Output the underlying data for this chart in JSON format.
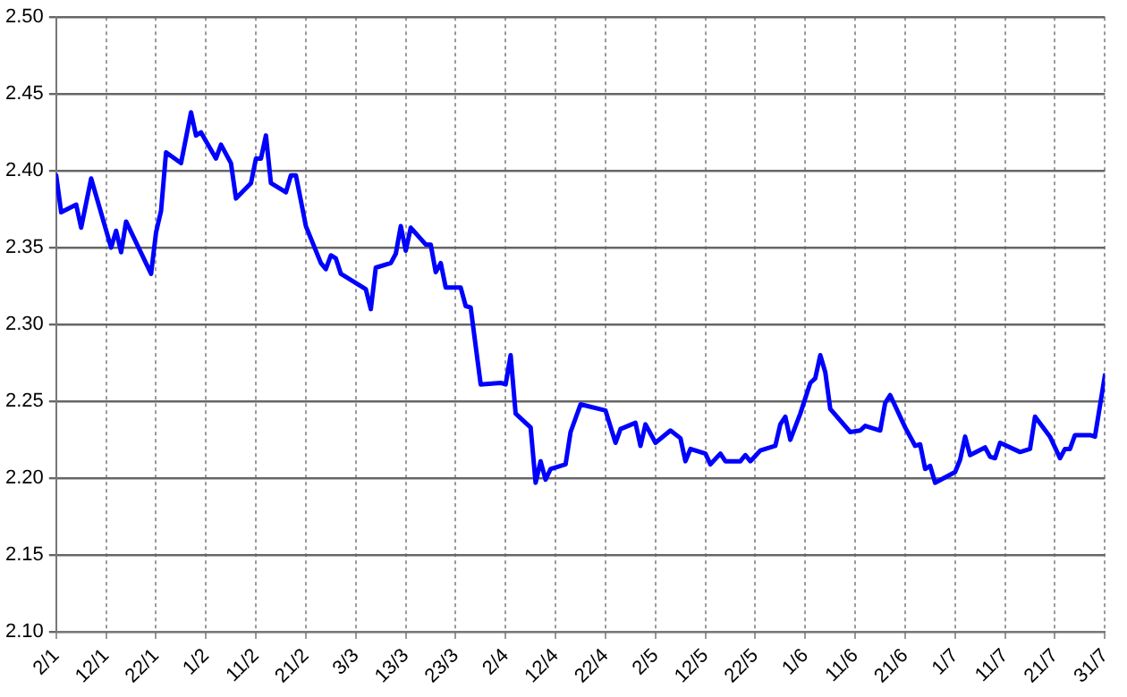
{
  "chart_data": {
    "type": "line",
    "x": [
      "--01-02",
      "--01-03",
      "--01-06",
      "--01-07",
      "--01-09",
      "--01-13",
      "--01-14",
      "--01-15",
      "--01-16",
      "--01-21",
      "--01-22",
      "--01-23",
      "--01-24",
      "--01-27",
      "--01-29",
      "--01-30",
      "--01-31",
      "--02-03",
      "--02-04",
      "--02-06",
      "--02-07",
      "--02-10",
      "--02-11",
      "--02-12",
      "--02-13",
      "--02-14",
      "--02-17",
      "--02-18",
      "--02-19",
      "--02-21",
      "--02-24",
      "--02-25",
      "--02-26",
      "--02-27",
      "--02-28",
      "--03-05",
      "--03-06",
      "--03-07",
      "--03-10",
      "--03-11",
      "--03-12",
      "--03-13",
      "--03-14",
      "--03-17",
      "--03-18",
      "--03-19",
      "--03-20",
      "--03-21",
      "--03-24",
      "--03-25",
      "--03-26",
      "--03-28",
      "--04-01",
      "--04-02",
      "--04-03",
      "--04-04",
      "--04-07",
      "--04-08",
      "--04-09",
      "--04-10",
      "--04-11",
      "--04-14",
      "--04-15",
      "--04-17",
      "--04-22",
      "--04-24",
      "--04-25",
      "--04-28",
      "--04-29",
      "--04-30",
      "--05-02",
      "--05-05",
      "--05-07",
      "--05-08",
      "--05-09",
      "--05-12",
      "--05-13",
      "--05-15",
      "--05-16",
      "--05-19",
      "--05-20",
      "--05-21",
      "--05-23",
      "--05-26",
      "--05-27",
      "--05-28",
      "--05-29",
      "--05-31",
      "--06-02",
      "--06-03",
      "--06-04",
      "--06-05",
      "--06-06",
      "--06-10",
      "--06-12",
      "--06-13",
      "--06-16",
      "--06-17",
      "--06-18",
      "--06-21",
      "--06-23",
      "--06-24",
      "--06-25",
      "--06-26",
      "--06-27",
      "--07-01",
      "--07-02",
      "--07-03",
      "--07-04",
      "--07-07",
      "--07-08",
      "--07-09",
      "--07-10",
      "--07-14",
      "--07-16",
      "--07-17",
      "--07-20",
      "--07-22",
      "--07-23",
      "--07-24",
      "--07-25",
      "--07-28",
      "--07-29",
      "--07-31"
    ],
    "series": [
      {
        "color": "#0000ff",
        "values": [
          2.397,
          2.373,
          2.378,
          2.363,
          2.395,
          2.35,
          2.361,
          2.347,
          2.367,
          2.333,
          2.36,
          2.374,
          2.412,
          2.405,
          2.438,
          2.423,
          2.425,
          2.408,
          2.417,
          2.405,
          2.382,
          2.392,
          2.408,
          2.408,
          2.423,
          2.392,
          2.386,
          2.397,
          2.397,
          2.364,
          2.34,
          2.336,
          2.345,
          2.343,
          2.333,
          2.323,
          2.31,
          2.337,
          2.34,
          2.346,
          2.364,
          2.348,
          2.363,
          2.352,
          2.352,
          2.334,
          2.34,
          2.324,
          2.324,
          2.312,
          2.311,
          2.261,
          2.262,
          2.261,
          2.28,
          2.242,
          2.233,
          2.197,
          2.211,
          2.199,
          2.206,
          2.209,
          2.23,
          2.248,
          2.244,
          2.223,
          2.232,
          2.236,
          2.221,
          2.235,
          2.223,
          2.231,
          2.226,
          2.211,
          2.219,
          2.216,
          2.209,
          2.216,
          2.211,
          2.211,
          2.215,
          2.211,
          2.218,
          2.221,
          2.235,
          2.24,
          2.225,
          2.242,
          2.262,
          2.265,
          2.28,
          2.269,
          2.245,
          2.23,
          2.231,
          2.234,
          2.231,
          2.249,
          2.254,
          2.233,
          2.221,
          2.222,
          2.206,
          2.208,
          2.197,
          2.204,
          2.212,
          2.227,
          2.215,
          2.22,
          2.214,
          2.213,
          2.223,
          2.217,
          2.219,
          2.24,
          2.227,
          2.213,
          2.219,
          2.219,
          2.228,
          2.228,
          2.227,
          2.267
        ]
      }
    ],
    "xlim": [
      "--01-02",
      "--07-31"
    ],
    "xticks": [
      {
        "value": "--01-02",
        "label": "2/1"
      },
      {
        "value": "--01-12",
        "label": "12/1"
      },
      {
        "value": "--01-22",
        "label": "22/1"
      },
      {
        "value": "--02-01",
        "label": "1/2"
      },
      {
        "value": "--02-11",
        "label": "11/2"
      },
      {
        "value": "--02-21",
        "label": "21/2"
      },
      {
        "value": "--03-03",
        "label": "3/3"
      },
      {
        "value": "--03-13",
        "label": "13/3"
      },
      {
        "value": "--03-23",
        "label": "23/3"
      },
      {
        "value": "--04-02",
        "label": "2/4"
      },
      {
        "value": "--04-12",
        "label": "12/4"
      },
      {
        "value": "--04-22",
        "label": "22/4"
      },
      {
        "value": "--05-02",
        "label": "2/5"
      },
      {
        "value": "--05-12",
        "label": "12/5"
      },
      {
        "value": "--05-22",
        "label": "22/5"
      },
      {
        "value": "--06-01",
        "label": "1/6"
      },
      {
        "value": "--06-11",
        "label": "11/6"
      },
      {
        "value": "--06-21",
        "label": "21/6"
      },
      {
        "value": "--07-01",
        "label": "1/7"
      },
      {
        "value": "--07-11",
        "label": "11/7"
      },
      {
        "value": "--07-21",
        "label": "21/7"
      },
      {
        "value": "--07-31",
        "label": "31/7"
      }
    ],
    "ylim": [
      2.1,
      2.5
    ],
    "yticks": [
      {
        "value": 2.1,
        "label": "2.10"
      },
      {
        "value": 2.15,
        "label": "2.15"
      },
      {
        "value": 2.2,
        "label": "2.20"
      },
      {
        "value": 2.25,
        "label": "2.25"
      },
      {
        "value": 2.3,
        "label": "2.30"
      },
      {
        "value": 2.35,
        "label": "2.35"
      },
      {
        "value": 2.4,
        "label": "2.40"
      },
      {
        "value": 2.45,
        "label": "2.45"
      },
      {
        "value": 2.5,
        "label": "2.50"
      }
    ],
    "grid": true,
    "legend": false,
    "marker": "none",
    "line_style": "solid"
  }
}
